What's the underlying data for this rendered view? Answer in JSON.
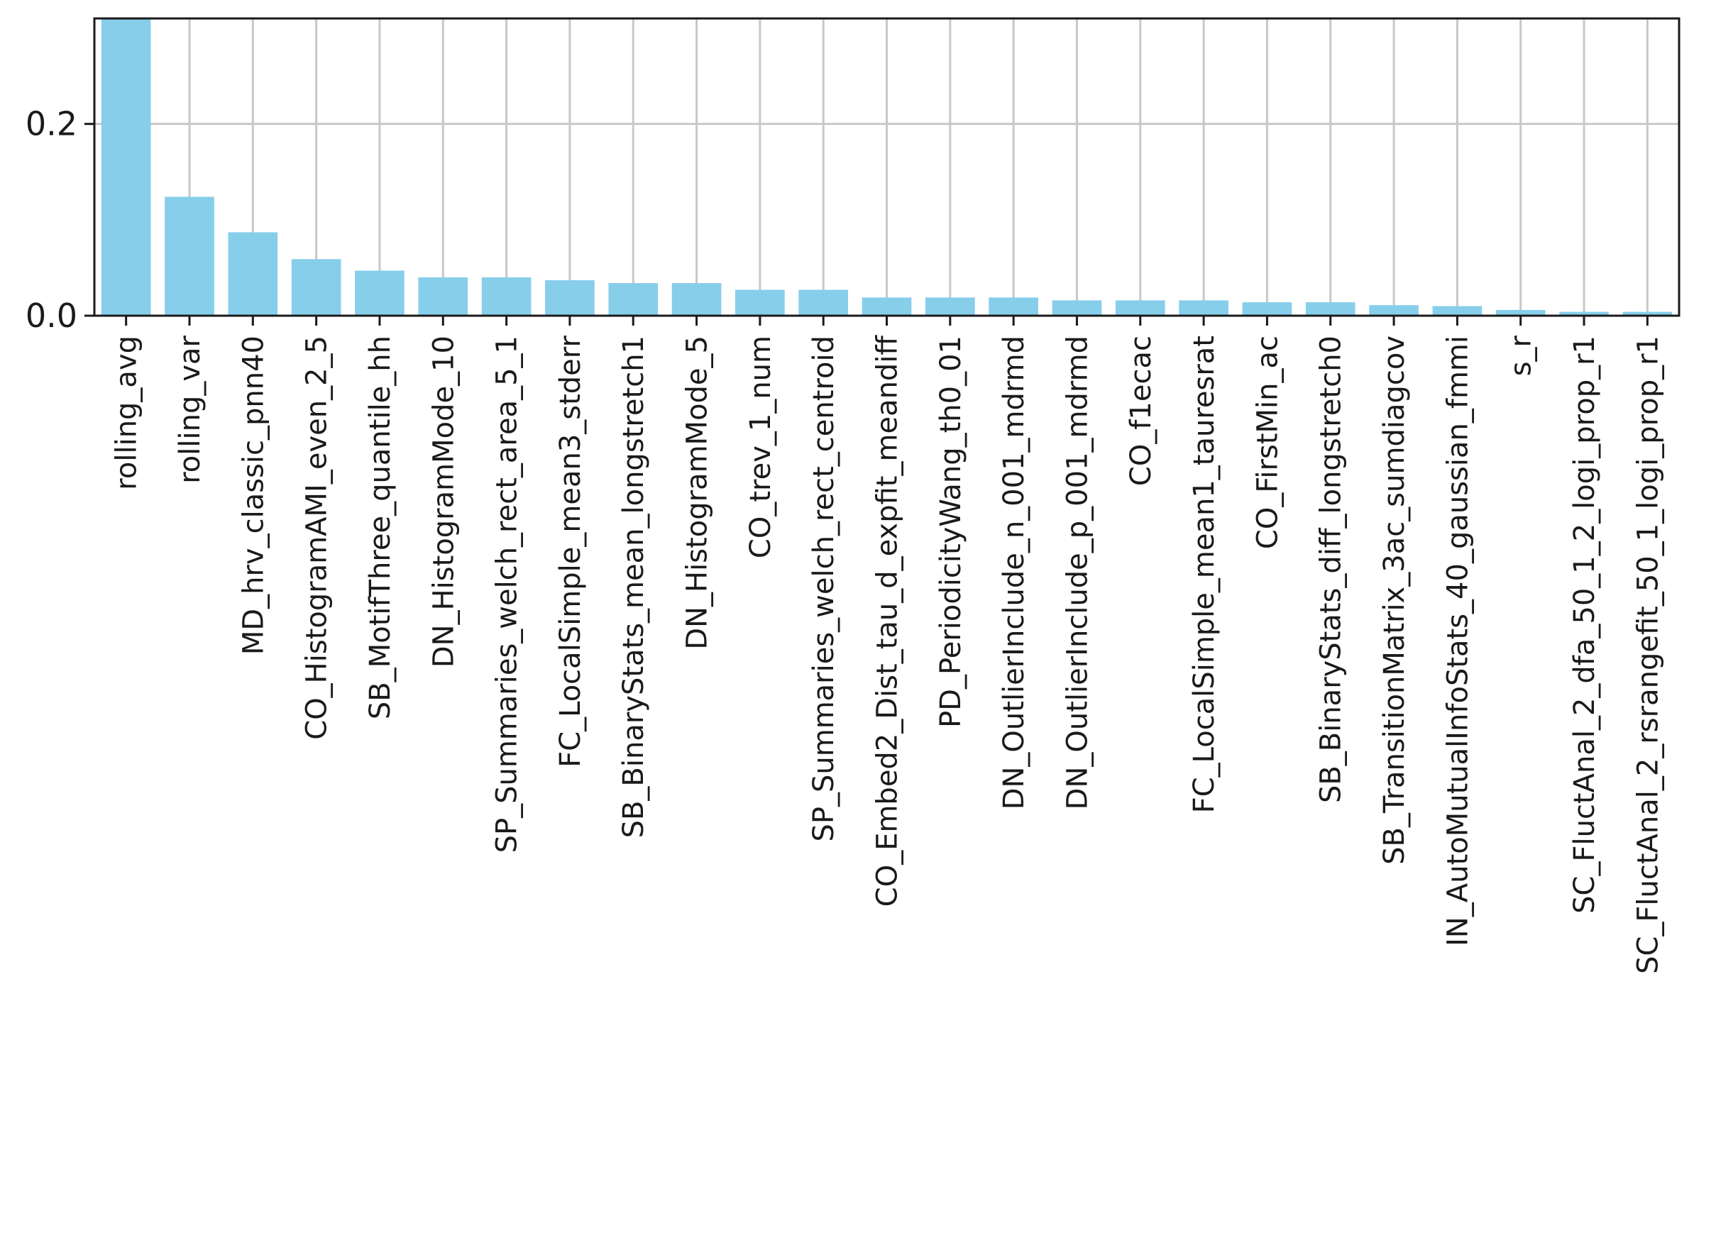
{
  "chart_data": {
    "type": "bar",
    "title": "",
    "xlabel": "",
    "ylabel": "",
    "ylim": [
      0,
      0.31
    ],
    "yticks": [
      0.0,
      0.2
    ],
    "ytick_labels": [
      "0.0",
      "0.2"
    ],
    "grid": true,
    "bar_color": "#87ceeb",
    "categories": [
      "rolling_avg",
      "rolling_var",
      "MD_hrv_classic_pnn40",
      "CO_HistogramAMI_even_2_5",
      "SB_MotifThree_quantile_hh",
      "DN_HistogramMode_10",
      "SP_Summaries_welch_rect_area_5_1",
      "FC_LocalSimple_mean3_stderr",
      "SB_BinaryStats_mean_longstretch1",
      "DN_HistogramMode_5",
      "CO_trev_1_num",
      "SP_Summaries_welch_rect_centroid",
      "CO_Embed2_Dist_tau_d_expfit_meandiff",
      "PD_PeriodicityWang_th0_01",
      "DN_OutlierInclude_n_001_mdrmd",
      "DN_OutlierInclude_p_001_mdrmd",
      "CO_f1ecac",
      "FC_LocalSimple_mean1_tauresrat",
      "CO_FirstMin_ac",
      "SB_BinaryStats_diff_longstretch0",
      "SB_TransitionMatrix_3ac_sumdiagcov",
      "IN_AutoMutualInfoStats_40_gaussian_fmmi",
      "s_r",
      "SC_FluctAnal_2_dfa_50_1_2_logi_prop_r1",
      "SC_FluctAnal_2_rsrangefit_50_1_logi_prop_r1"
    ],
    "values": [
      0.309,
      0.124,
      0.087,
      0.059,
      0.047,
      0.04,
      0.04,
      0.037,
      0.034,
      0.034,
      0.027,
      0.027,
      0.019,
      0.019,
      0.019,
      0.016,
      0.016,
      0.016,
      0.014,
      0.014,
      0.011,
      0.01,
      0.006,
      0.004,
      0.004
    ]
  }
}
